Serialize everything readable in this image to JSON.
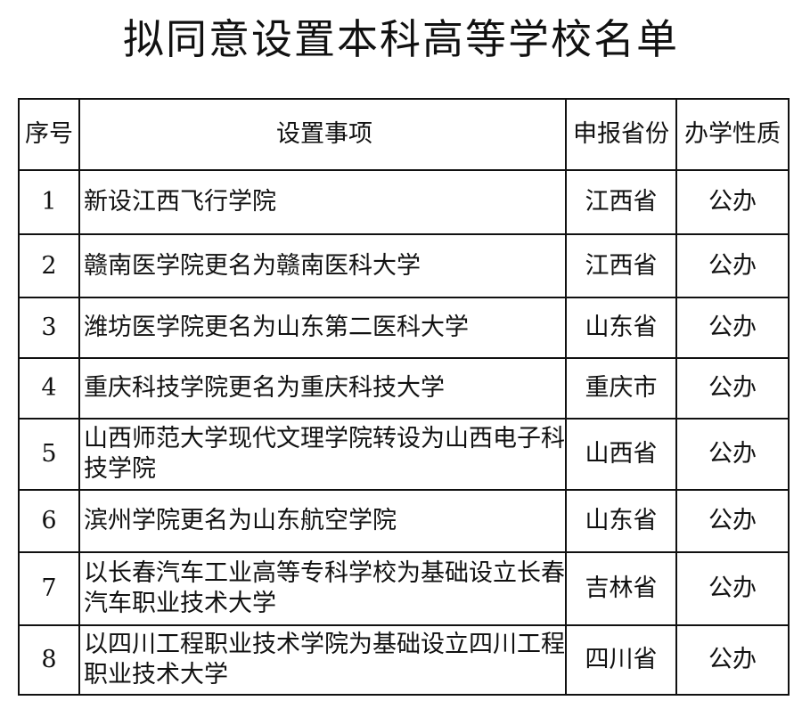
{
  "title": "拟同意设置本科高等学校名单",
  "headers": [
    "序号",
    "设置事项",
    "申报省份",
    "办学性质"
  ],
  "rows": [
    {
      "no": "1",
      "item": "新设江西飞行学院",
      "province": "江西省",
      "nature": "公办"
    },
    {
      "no": "2",
      "item": "赣南医学院更名为赣南医科大学",
      "province": "江西省",
      "nature": "公办"
    },
    {
      "no": "3",
      "item": "潍坊医学院更名为山东第二医科大学",
      "province": "山东省",
      "nature": "公办"
    },
    {
      "no": "4",
      "item": "重庆科技学院更名为重庆科技大学",
      "province": "重庆市",
      "nature": "公办"
    },
    {
      "no": "5",
      "item": "山西师范大学现代文理学院转设为山西电子科技学院",
      "province": "山西省",
      "nature": "公办"
    },
    {
      "no": "6",
      "item": "滨州学院更名为山东航空学院",
      "province": "山东省",
      "nature": "公办"
    },
    {
      "no": "7",
      "item": "以长春汽车工业高等专科学校为基础设立长春汽车职业技术大学",
      "province": "吉林省",
      "nature": "公办"
    },
    {
      "no": "8",
      "item": "以四川工程职业技术学院为基础设立四川工程职业技术大学",
      "province": "四川省",
      "nature": "公办"
    }
  ]
}
